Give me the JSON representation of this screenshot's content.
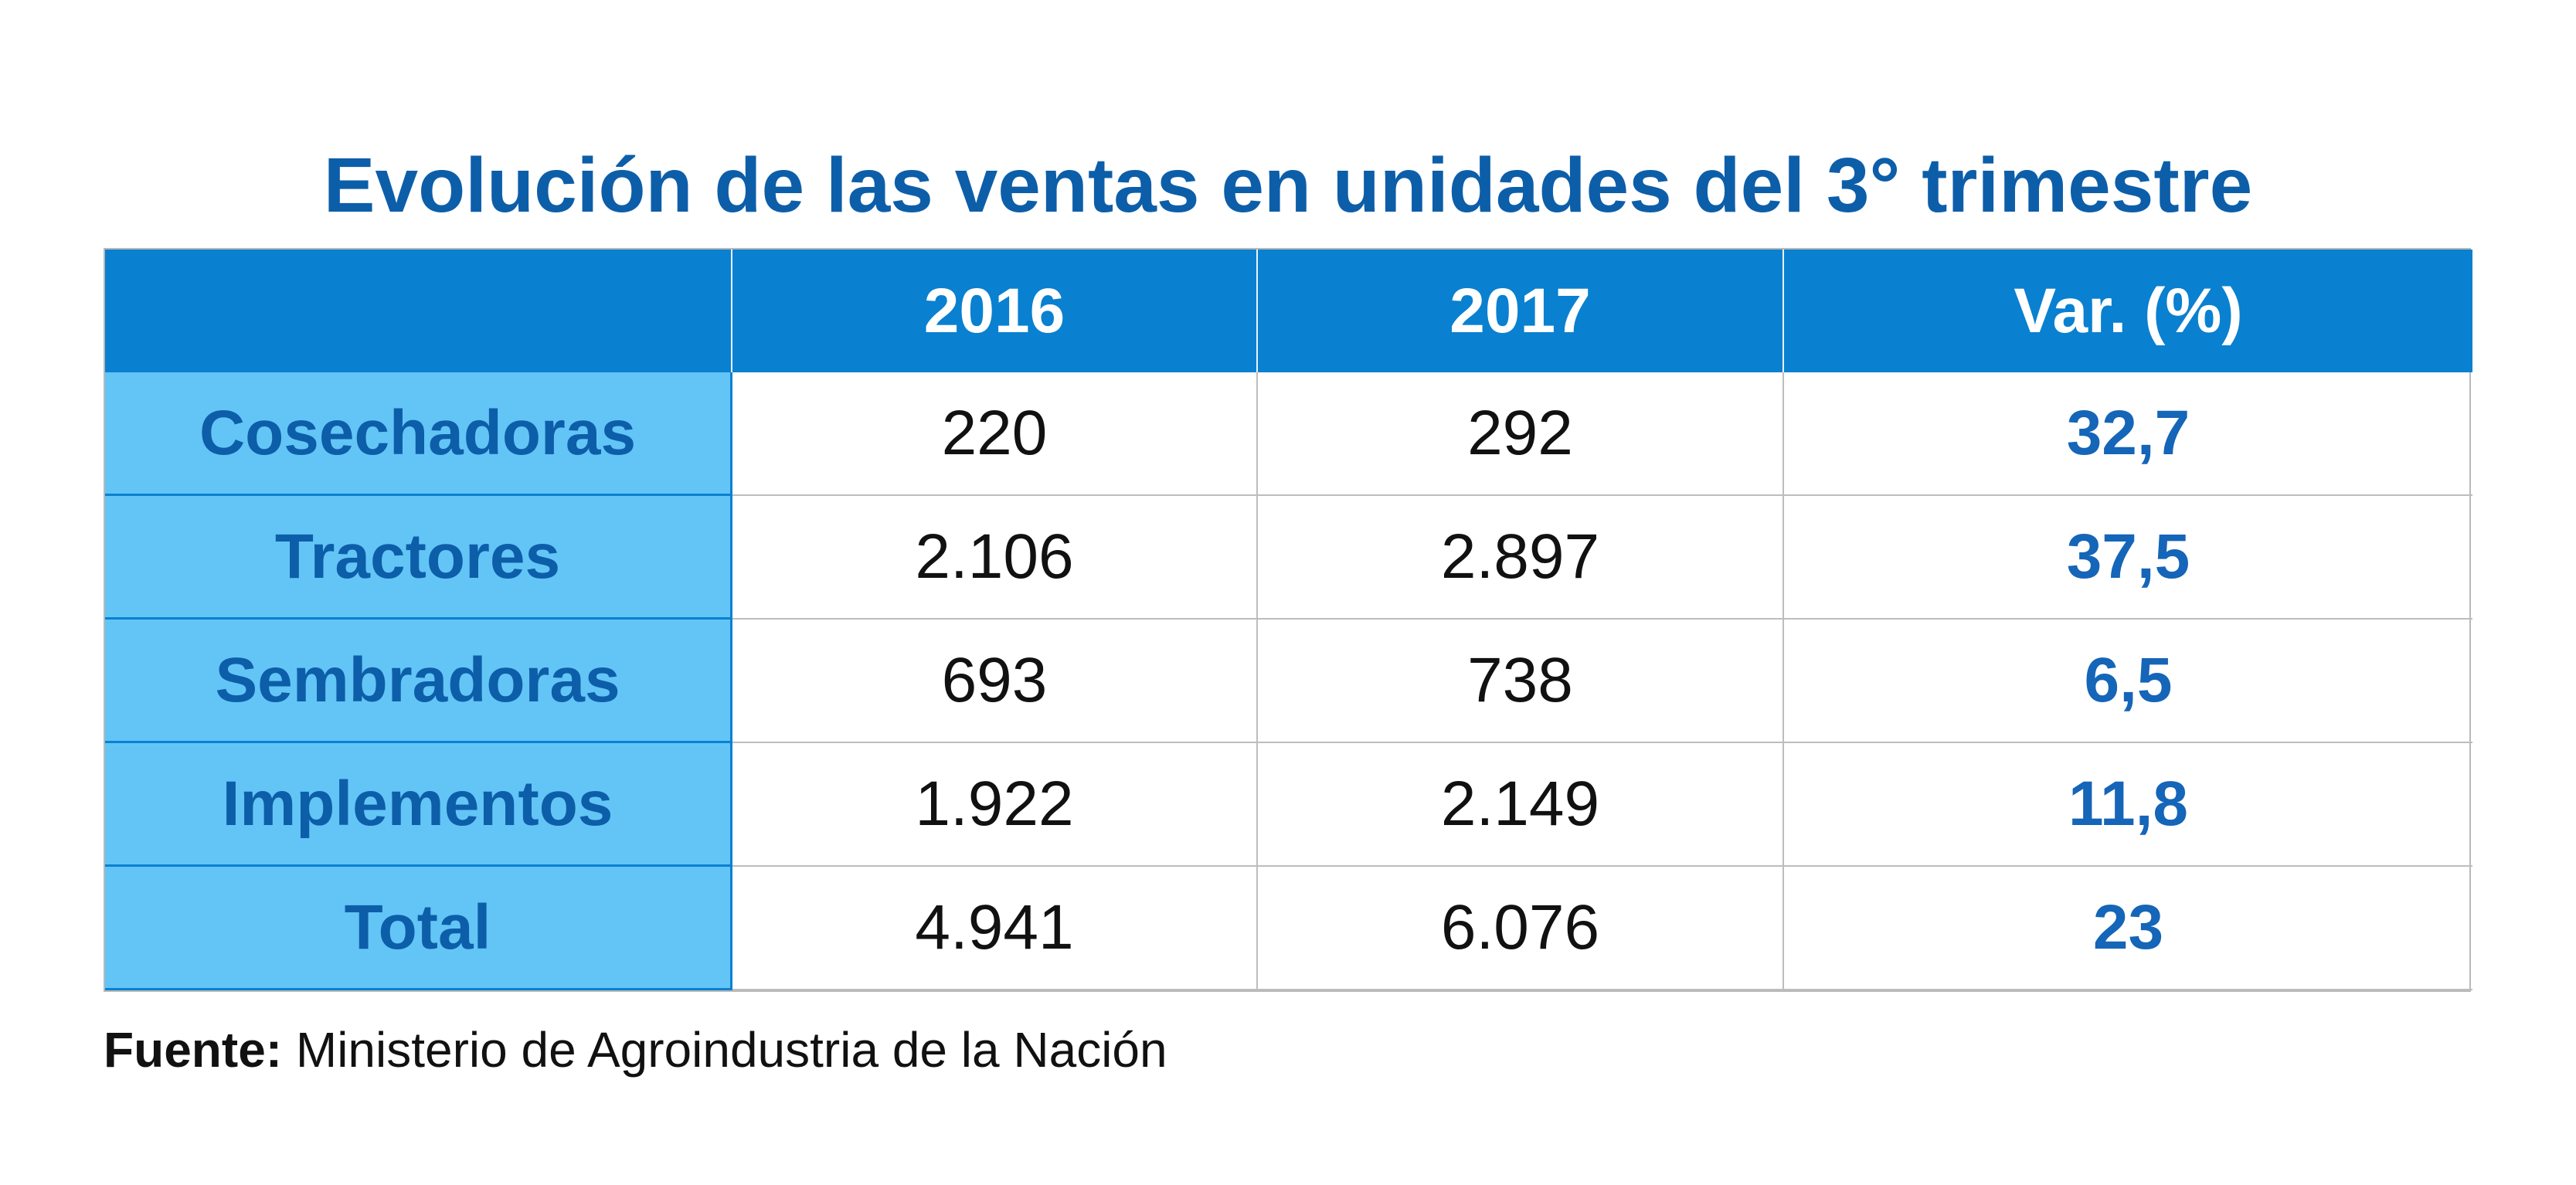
{
  "title": "Evolución de las ventas en unidades del 3° trimestre",
  "table": {
    "columns": [
      "2016",
      "2017",
      "Var. (%)"
    ],
    "rows": [
      [
        "Cosechadoras",
        "220",
        "292",
        "32,7"
      ],
      [
        "Tractores",
        "2.106",
        "2.897",
        "37,5"
      ],
      [
        "Sembradoras",
        "693",
        "738",
        "6,5"
      ],
      [
        "Implementos",
        "1.922",
        "2.149",
        "11,8"
      ],
      [
        "Total",
        "4.941",
        "6.076",
        "23"
      ]
    ]
  },
  "source": {
    "label": "Fuente:",
    "text": "Ministerio de Agroindustria de la Nación"
  }
}
